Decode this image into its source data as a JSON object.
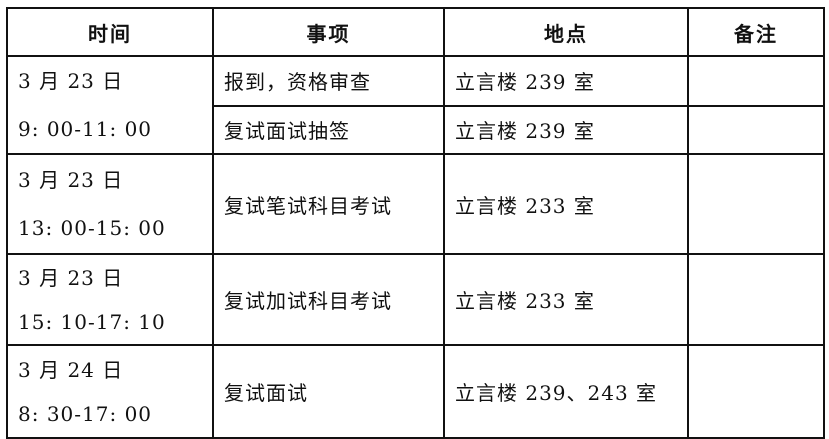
{
  "headers": [
    "时间",
    "事项",
    "地点",
    "备注"
  ],
  "rows": [
    {
      "date": "3 月 23 日",
      "time": "9: 00-11: 00",
      "items": [
        {
          "task": "报到，资格审查",
          "place": "立言楼 239 室",
          "note": ""
        },
        {
          "task": "复试面试抽签",
          "place": "立言楼 239 室",
          "note": ""
        }
      ]
    },
    {
      "date": "3 月 23 日",
      "time": "13: 00-15: 00",
      "task": "复试笔试科目考试",
      "place": "立言楼 233 室",
      "note": ""
    },
    {
      "date": "3 月 23 日",
      "time": "15: 10-17: 10",
      "task": "复试加试科目考试",
      "place": "立言楼 233 室",
      "note": ""
    },
    {
      "date": "3 月 24 日",
      "time": "8: 30-17: 00",
      "task": "复试面试",
      "place": "立言楼 239、243 室",
      "note": ""
    }
  ]
}
